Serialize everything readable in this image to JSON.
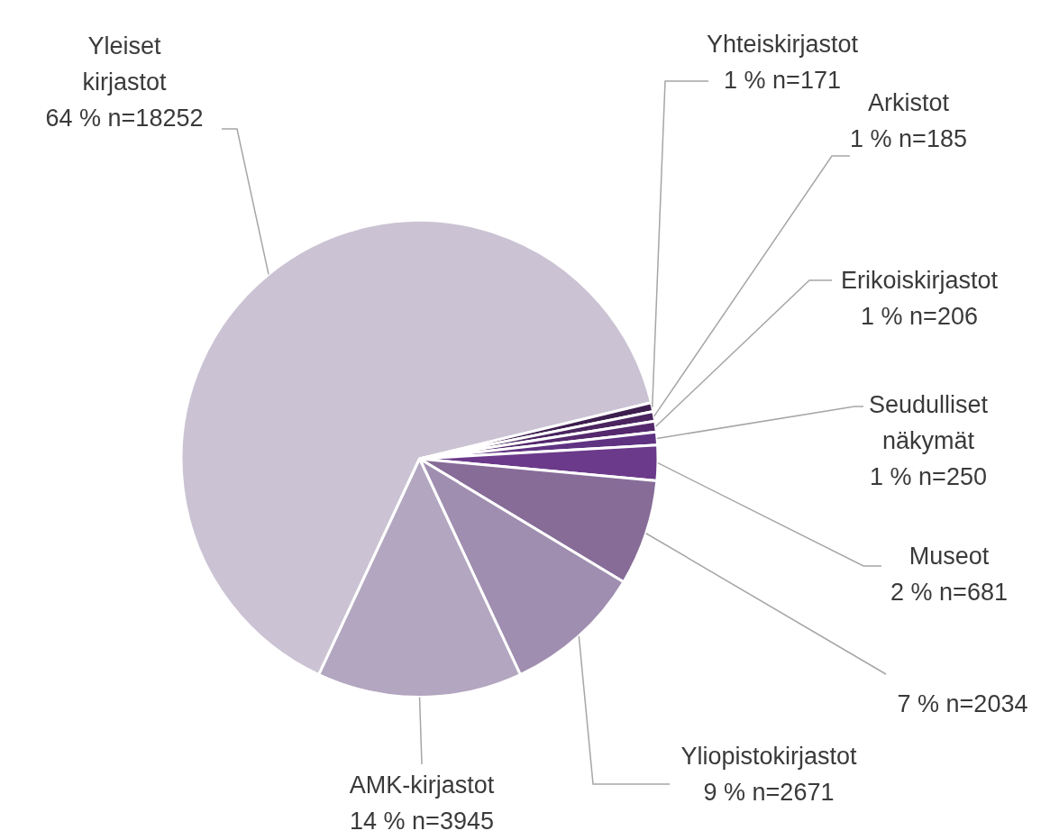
{
  "chart_data": {
    "type": "pie",
    "categories": [
      "Yleiset kirjastot",
      "Yhteiskirjastot",
      "Arkistot",
      "Erikoiskirjastot",
      "Seudulliset näkymät",
      "Museot",
      null,
      "Yliopistokirjastot",
      "AMK-kirjastot"
    ],
    "values": [
      18252,
      171,
      185,
      206,
      250,
      681,
      2034,
      2671,
      3945
    ],
    "value_labels": [
      "64 % n=18252",
      "1 % n=171",
      "1 % n=185",
      "1 % n=206",
      "1 % n=250",
      "2 % n=681",
      "7 % n=2034",
      "9 % n=2671",
      "14 % n=3945"
    ],
    "colors": [
      "#cbc3d3",
      "#3d1f4f",
      "#4a2560",
      "#55296d",
      "#5f3282",
      "#6b3a8a",
      "#876c98",
      "#a08eb0",
      "#b3a6c0"
    ],
    "legend": false
  }
}
